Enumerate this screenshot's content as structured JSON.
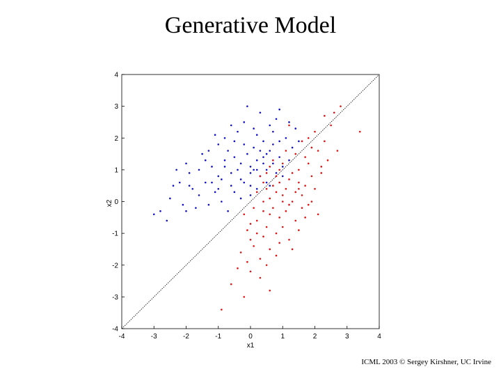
{
  "slide": {
    "title": "Generative Model",
    "footer": "ICML 2003 © Sergey Kirshner, UC Irvine"
  },
  "chart_data": {
    "type": "scatter",
    "title": "",
    "xlabel": "x1",
    "ylabel": "x2",
    "xlim": [
      -4,
      4
    ],
    "ylim": [
      -4,
      4
    ],
    "xticks": [
      -4,
      -3,
      -2,
      -1,
      0,
      1,
      2,
      3,
      4
    ],
    "yticks": [
      -4,
      -3,
      -2,
      -1,
      0,
      1,
      2,
      3,
      4
    ],
    "grid": false,
    "reference_line": {
      "from": [
        -4,
        -4
      ],
      "to": [
        4,
        4
      ],
      "style": "dotted",
      "color": "#000000"
    },
    "series": [
      {
        "color": "#1010c8",
        "points": [
          [
            -0.3,
            1.2
          ],
          [
            0.1,
            1.0
          ],
          [
            -0.6,
            0.9
          ],
          [
            0.4,
            1.4
          ],
          [
            -1.0,
            0.8
          ],
          [
            0.0,
            0.5
          ],
          [
            0.6,
            1.6
          ],
          [
            -0.2,
            1.8
          ],
          [
            -1.4,
            0.6
          ],
          [
            0.3,
            0.8
          ],
          [
            -0.8,
            1.3
          ],
          [
            0.9,
            1.9
          ],
          [
            -0.5,
            0.3
          ],
          [
            0.2,
            2.1
          ],
          [
            -1.2,
            1.1
          ],
          [
            0.7,
            1.2
          ],
          [
            -1.8,
            0.4
          ],
          [
            0.5,
            0.6
          ],
          [
            -0.1,
            1.5
          ],
          [
            -0.9,
            0.0
          ],
          [
            1.1,
            2.0
          ],
          [
            -0.4,
            2.2
          ],
          [
            0.8,
            0.9
          ],
          [
            -1.6,
            1.0
          ],
          [
            0.0,
            1.1
          ],
          [
            -2.2,
            0.6
          ],
          [
            -0.7,
            1.6
          ],
          [
            0.4,
            1.9
          ],
          [
            -1.1,
            0.3
          ],
          [
            0.2,
            1.3
          ],
          [
            -2.5,
            0.1
          ],
          [
            -2.0,
            1.2
          ],
          [
            -0.3,
            0.7
          ],
          [
            0.6,
            2.4
          ],
          [
            1.3,
            1.7
          ],
          [
            -1.5,
            1.5
          ],
          [
            -0.6,
            0.5
          ],
          [
            0.1,
            1.7
          ],
          [
            -2.8,
            -0.3
          ],
          [
            -1.3,
            -0.1
          ],
          [
            0.9,
            1.4
          ],
          [
            -0.2,
            2.5
          ],
          [
            0.3,
            2.8
          ],
          [
            -0.8,
            2.0
          ],
          [
            1.0,
            1.1
          ],
          [
            -1.9,
            0.9
          ],
          [
            -0.4,
            1.0
          ],
          [
            0.5,
            1.0
          ],
          [
            -2.4,
            0.5
          ],
          [
            -1.0,
            1.8
          ],
          [
            0.0,
            0.2
          ],
          [
            0.7,
            2.2
          ],
          [
            1.4,
            2.3
          ],
          [
            -1.7,
            -0.2
          ],
          [
            -0.5,
            1.4
          ],
          [
            0.2,
            0.4
          ],
          [
            -2.1,
            -0.1
          ],
          [
            -1.2,
            0.6
          ],
          [
            0.8,
            2.6
          ],
          [
            1.2,
            1.3
          ],
          [
            -0.1,
            3.0
          ],
          [
            -3.0,
            -0.4
          ],
          [
            -0.9,
            0.7
          ],
          [
            0.4,
            1.2
          ],
          [
            -1.4,
            1.3
          ],
          [
            0.1,
            2.3
          ],
          [
            -0.6,
            2.4
          ],
          [
            -2.3,
            1.0
          ],
          [
            1.0,
            0.8
          ],
          [
            -0.3,
            0.1
          ],
          [
            0.6,
            0.5
          ],
          [
            -1.6,
            0.2
          ],
          [
            -0.7,
            -0.3
          ],
          [
            0.3,
            1.6
          ],
          [
            1.5,
            1.9
          ],
          [
            -2.6,
            -0.6
          ],
          [
            -1.1,
            2.1
          ],
          [
            0.0,
            0.9
          ],
          [
            -0.2,
            0.6
          ],
          [
            0.9,
            2.9
          ],
          [
            -1.9,
            0.5
          ],
          [
            -0.8,
            1.1
          ],
          [
            0.5,
            1.5
          ],
          [
            -1.3,
            1.6
          ],
          [
            -2.0,
            -0.3
          ],
          [
            1.2,
            2.5
          ],
          [
            0.2,
            1.0
          ],
          [
            -0.5,
            1.9
          ],
          [
            -1.0,
            0.4
          ],
          [
            0.7,
            1.8
          ]
        ]
      },
      {
        "color": "#e01010",
        "points": [
          [
            1.0,
            0.2
          ],
          [
            0.6,
            -0.4
          ],
          [
            1.2,
            0.7
          ],
          [
            0.4,
            0.0
          ],
          [
            1.5,
            0.4
          ],
          [
            0.8,
            -1.0
          ],
          [
            0.2,
            -0.6
          ],
          [
            1.8,
            1.2
          ],
          [
            0.5,
            0.9
          ],
          [
            1.1,
            -0.3
          ],
          [
            0.0,
            -1.2
          ],
          [
            1.4,
            1.5
          ],
          [
            0.7,
            0.5
          ],
          [
            0.3,
            -1.8
          ],
          [
            1.9,
            0.8
          ],
          [
            1.6,
            -0.2
          ],
          [
            0.9,
            1.0
          ],
          [
            -0.1,
            -0.9
          ],
          [
            2.1,
            1.6
          ],
          [
            0.6,
            -1.5
          ],
          [
            1.3,
            0.0
          ],
          [
            0.1,
            -0.2
          ],
          [
            2.0,
            2.2
          ],
          [
            1.0,
            -0.8
          ],
          [
            0.4,
            0.6
          ],
          [
            1.7,
            0.5
          ],
          [
            0.8,
            0.3
          ],
          [
            -0.3,
            -1.6
          ],
          [
            2.3,
            1.9
          ],
          [
            1.2,
            -1.2
          ],
          [
            0.5,
            -2.0
          ],
          [
            1.5,
            1.0
          ],
          [
            0.9,
            -0.5
          ],
          [
            0.2,
            0.3
          ],
          [
            1.8,
            -0.1
          ],
          [
            2.5,
            2.4
          ],
          [
            0.7,
            1.3
          ],
          [
            1.1,
            0.4
          ],
          [
            -0.2,
            -0.4
          ],
          [
            0.3,
            -2.4
          ],
          [
            1.4,
            -0.6
          ],
          [
            2.2,
            0.9
          ],
          [
            0.6,
            0.1
          ],
          [
            1.9,
            1.7
          ],
          [
            0.0,
            -2.2
          ],
          [
            1.0,
            1.2
          ],
          [
            1.6,
            0.2
          ],
          [
            0.8,
            -1.7
          ],
          [
            2.6,
            2.8
          ],
          [
            0.4,
            -1.1
          ],
          [
            1.3,
            0.9
          ],
          [
            -0.4,
            -2.1
          ],
          [
            1.7,
            1.4
          ],
          [
            0.5,
            -0.8
          ],
          [
            1.2,
            -0.1
          ],
          [
            2.4,
            1.3
          ],
          [
            0.9,
            0.6
          ],
          [
            0.1,
            -1.4
          ],
          [
            1.5,
            -0.9
          ],
          [
            2.0,
            0.4
          ],
          [
            0.7,
            -0.2
          ],
          [
            -0.6,
            -2.6
          ],
          [
            1.1,
            1.6
          ],
          [
            0.3,
            0.8
          ],
          [
            1.8,
            2.0
          ],
          [
            2.8,
            3.0
          ],
          [
            0.6,
            -2.8
          ],
          [
            -0.9,
            -3.4
          ],
          [
            1.4,
            0.3
          ],
          [
            0.2,
            -1.0
          ],
          [
            2.1,
            -0.4
          ],
          [
            1.0,
            0.0
          ],
          [
            0.5,
            0.4
          ],
          [
            1.6,
            1.9
          ],
          [
            -0.2,
            -3.0
          ],
          [
            3.4,
            2.2
          ],
          [
            1.3,
            -1.5
          ],
          [
            0.8,
            0.8
          ],
          [
            2.7,
            1.6
          ],
          [
            0.0,
            -0.7
          ],
          [
            1.9,
            0.0
          ],
          [
            1.2,
            2.4
          ],
          [
            0.4,
            -0.3
          ],
          [
            2.3,
            2.7
          ],
          [
            1.7,
            -0.5
          ],
          [
            0.9,
            -1.3
          ],
          [
            0.6,
            1.1
          ],
          [
            1.5,
            0.6
          ],
          [
            -0.1,
            -1.9
          ],
          [
            2.2,
            1.1
          ]
        ]
      }
    ]
  }
}
